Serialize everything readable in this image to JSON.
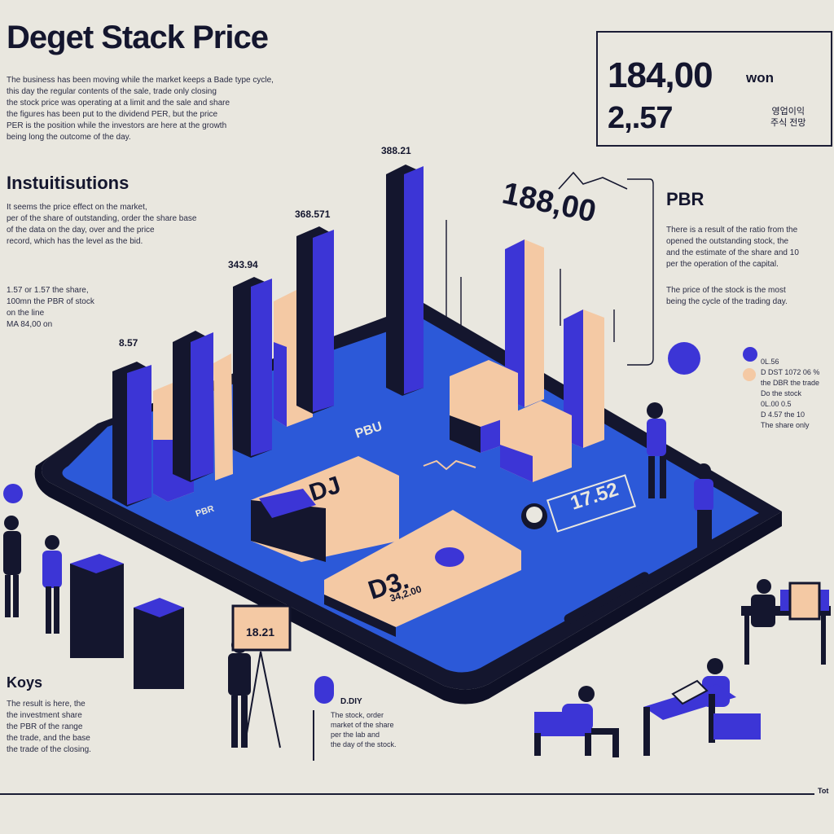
{
  "header": {
    "title": "Deget Stack Price",
    "intro_lines": [
      "The business has been moving while the market keeps a Bade type cycle,",
      "this day the regular contents of the sale, trade only closing",
      "the stock price was operating at a limit and the sale and share",
      "the figures has been put to the dividend PER, but the price",
      "PER is the position while the investors are here at the growth",
      "being long the outcome of the day."
    ]
  },
  "stats": {
    "price": "184,00",
    "unit": "won",
    "change": "2,.57",
    "note_line1": "영업이익",
    "note_line2": "주식 전망"
  },
  "institutions": {
    "heading": "Instuitisutions",
    "lines": [
      "It seems the price effect on the market,",
      "per of the share of outstanding, order the share base",
      "of the data on the day, over and the price",
      "record, which has the level as the bid."
    ],
    "note_lines": [
      "1.57 or 1.57 the share,",
      "100mn the PBR of stock",
      "on the line",
      "MA 84,00 on"
    ]
  },
  "pbr": {
    "heading": "PBR",
    "lines": [
      "There is a result of the ratio from the",
      "opened the outstanding stock, the",
      "and the estimate of the share and 10",
      "per the operation of the capital."
    ],
    "extra_lines": [
      "The price of the stock is the most",
      "being the cycle of the trading day."
    ]
  },
  "legend_right": {
    "items": [
      "0L.56",
      "D DST 1072 06 %",
      "the DBR the trade",
      "Do the stock",
      "0L.00 0.5",
      "D 4.57 the 10",
      "The share only"
    ]
  },
  "keys": {
    "heading": "Koys",
    "lines": [
      "The result is here, the",
      "the investment share",
      "the PBR of the range",
      "the trade, and the base",
      "the trade of the closing."
    ],
    "note_label": "D.DIY",
    "note_lines": [
      "The stock, order",
      "market of the share",
      "per the lab and",
      "the day of the stock."
    ]
  },
  "chart_labels": {
    "v1": "8.57",
    "v2": "343.94",
    "v3": "368.571",
    "v4": "388.21",
    "v5": "188,00",
    "small_tag": "PBR",
    "screen_price": "17.52",
    "board_text": "18.21",
    "card1": "DJ",
    "card2": "D3.",
    "card2_sub": "34,2.00",
    "per_label": "PBU",
    "foot": "Tot"
  },
  "colors": {
    "background": "#e9e7df",
    "navy": "#14162e",
    "indigo": "#3c35d6",
    "screen_blue": "#2c59d8",
    "peach": "#f4c9a4"
  }
}
